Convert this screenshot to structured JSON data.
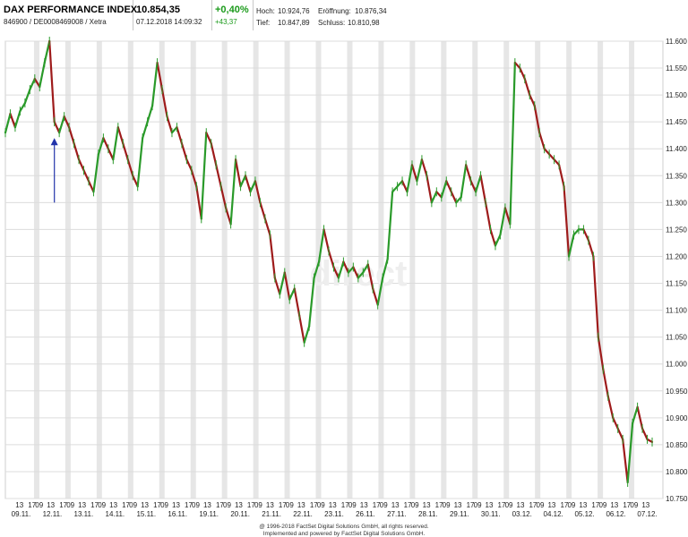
{
  "header": {
    "name": "DAX PERFORMANCE INDEX",
    "ids": "846900 / DE0008469008 / Xetra",
    "price": "10.854,35",
    "datetime": "07.12.2018 14:09:32",
    "change_pct": "+0,40%",
    "change_abs": "+43,37",
    "hoch_label": "Hoch:",
    "hoch": "10.924,76",
    "eroeffnung_label": "Eröffnung:",
    "eroeffnung": "10.876,34",
    "tief_label": "Tief:",
    "tief": "10.847,89",
    "schluss_label": "Schluss:",
    "schluss": "10.810,98"
  },
  "watermark": "direct",
  "footer": {
    "line1": "@ 1996-2018 FactSet Digital Solutions GmbH, all rights reserved.",
    "line2": "Implemented and powered by FactSet Digital Solutions GmbH."
  },
  "colors": {
    "up": "#2a9a2a",
    "down": "#9e1b1b",
    "grid": "#dcdcdc",
    "arrow": "#2233aa"
  },
  "chart_data": {
    "type": "line",
    "title": "",
    "xlabel": "",
    "ylabel": "",
    "ylim": [
      10750,
      11600
    ],
    "y_ticks": [
      11600,
      11550,
      11500,
      11450,
      11400,
      11350,
      11300,
      11250,
      11200,
      11150,
      11100,
      11050,
      11000,
      10950,
      10900,
      10850,
      10800,
      10750
    ],
    "y_tick_labels": [
      "11.600",
      "11.550",
      "11.500",
      "11.450",
      "11.400",
      "11.350",
      "11.300",
      "11.250",
      "11.200",
      "11.150",
      "11.100",
      "11.050",
      "11.000",
      "10.950",
      "10.900",
      "10.850",
      "10.800",
      "10.750"
    ],
    "days": [
      "09.11.",
      "12.11.",
      "13.11.",
      "14.11.",
      "15.11.",
      "16.11.",
      "19.11.",
      "20.11.",
      "21.11.",
      "22.11.",
      "23.11.",
      "26.11.",
      "27.11.",
      "28.11.",
      "29.11.",
      "30.11.",
      "03.12.",
      "04.12.",
      "05.12.",
      "06.12.",
      "07.12."
    ],
    "hour_labels": [
      "13",
      "17",
      "09",
      "13",
      "17",
      "09",
      "13",
      "17",
      "09",
      "13",
      "17",
      "09",
      "13",
      "17",
      "09",
      "13",
      "17",
      "09",
      "13",
      "17",
      "09",
      "13",
      "17",
      "09",
      "13",
      "17",
      "09",
      "13",
      "17",
      "09",
      "13",
      "17",
      "09",
      "13",
      "17",
      "09",
      "13",
      "17",
      "09",
      "13",
      "17",
      "09",
      "13",
      "17",
      "09",
      "13",
      "17",
      "09",
      "13",
      "17",
      "09",
      "13",
      "17",
      "09",
      "13",
      "17",
      "09",
      "13",
      "17",
      "09",
      "13"
    ],
    "series": [
      {
        "values": [
          [
            0,
            11430
          ],
          [
            1,
            11465
          ],
          [
            2,
            11440
          ],
          [
            3,
            11470
          ],
          [
            4,
            11485
          ],
          [
            5,
            11510
          ],
          [
            6,
            11530
          ],
          [
            7,
            11515
          ],
          [
            8,
            11560
          ],
          [
            9,
            11600
          ],
          [
            10,
            11450
          ],
          [
            11,
            11430
          ],
          [
            12,
            11460
          ],
          [
            13,
            11440
          ],
          [
            14,
            11410
          ],
          [
            15,
            11380
          ],
          [
            16,
            11360
          ],
          [
            17,
            11340
          ],
          [
            18,
            11320
          ],
          [
            19,
            11390
          ],
          [
            20,
            11420
          ],
          [
            21,
            11400
          ],
          [
            22,
            11380
          ],
          [
            23,
            11440
          ],
          [
            24,
            11410
          ],
          [
            25,
            11380
          ],
          [
            26,
            11350
          ],
          [
            27,
            11330
          ],
          [
            28,
            11420
          ],
          [
            29,
            11450
          ],
          [
            30,
            11480
          ],
          [
            31,
            11560
          ],
          [
            32,
            11510
          ],
          [
            33,
            11460
          ],
          [
            34,
            11430
          ],
          [
            35,
            11440
          ],
          [
            36,
            11410
          ],
          [
            37,
            11380
          ],
          [
            38,
            11360
          ],
          [
            39,
            11330
          ],
          [
            40,
            11270
          ],
          [
            41,
            11430
          ],
          [
            42,
            11410
          ],
          [
            43,
            11370
          ],
          [
            44,
            11330
          ],
          [
            45,
            11290
          ],
          [
            46,
            11260
          ],
          [
            47,
            11380
          ],
          [
            48,
            11330
          ],
          [
            49,
            11350
          ],
          [
            50,
            11320
          ],
          [
            51,
            11340
          ],
          [
            52,
            11300
          ],
          [
            53,
            11270
          ],
          [
            54,
            11240
          ],
          [
            55,
            11160
          ],
          [
            56,
            11130
          ],
          [
            57,
            11170
          ],
          [
            58,
            11120
          ],
          [
            59,
            11140
          ],
          [
            60,
            11090
          ],
          [
            61,
            11040
          ],
          [
            62,
            11070
          ],
          [
            63,
            11160
          ],
          [
            64,
            11190
          ],
          [
            65,
            11250
          ],
          [
            66,
            11210
          ],
          [
            67,
            11180
          ],
          [
            68,
            11160
          ],
          [
            69,
            11190
          ],
          [
            70,
            11170
          ],
          [
            71,
            11180
          ],
          [
            72,
            11160
          ],
          [
            73,
            11170
          ],
          [
            74,
            11185
          ],
          [
            75,
            11140
          ],
          [
            76,
            11110
          ],
          [
            77,
            11160
          ],
          [
            78,
            11195
          ],
          [
            79,
            11320
          ],
          [
            80,
            11330
          ],
          [
            81,
            11340
          ],
          [
            82,
            11320
          ],
          [
            83,
            11370
          ],
          [
            84,
            11340
          ],
          [
            85,
            11380
          ],
          [
            86,
            11350
          ],
          [
            87,
            11300
          ],
          [
            88,
            11320
          ],
          [
            89,
            11310
          ],
          [
            90,
            11340
          ],
          [
            91,
            11320
          ],
          [
            92,
            11300
          ],
          [
            93,
            11310
          ],
          [
            94,
            11370
          ],
          [
            95,
            11340
          ],
          [
            96,
            11320
          ],
          [
            97,
            11350
          ],
          [
            98,
            11300
          ],
          [
            99,
            11250
          ],
          [
            100,
            11220
          ],
          [
            101,
            11240
          ],
          [
            102,
            11290
          ],
          [
            103,
            11260
          ],
          [
            104,
            11560
          ],
          [
            105,
            11550
          ],
          [
            106,
            11530
          ],
          [
            107,
            11500
          ],
          [
            108,
            11480
          ],
          [
            109,
            11430
          ],
          [
            110,
            11400
          ],
          [
            111,
            11390
          ],
          [
            112,
            11380
          ],
          [
            113,
            11370
          ],
          [
            114,
            11330
          ],
          [
            115,
            11200
          ],
          [
            116,
            11240
          ],
          [
            117,
            11250
          ],
          [
            118,
            11250
          ],
          [
            119,
            11230
          ],
          [
            120,
            11200
          ],
          [
            121,
            11050
          ],
          [
            122,
            10990
          ],
          [
            123,
            10940
          ],
          [
            124,
            10900
          ],
          [
            125,
            10880
          ],
          [
            126,
            10860
          ],
          [
            127,
            10780
          ],
          [
            128,
            10890
          ],
          [
            129,
            10920
          ],
          [
            130,
            10880
          ],
          [
            131,
            10860
          ],
          [
            132,
            10855
          ]
        ]
      }
    ],
    "x_range": [
      0,
      132
    ],
    "annotation": {
      "type": "arrow",
      "x": 10,
      "y_from": 11300,
      "y_to": 11420
    }
  }
}
